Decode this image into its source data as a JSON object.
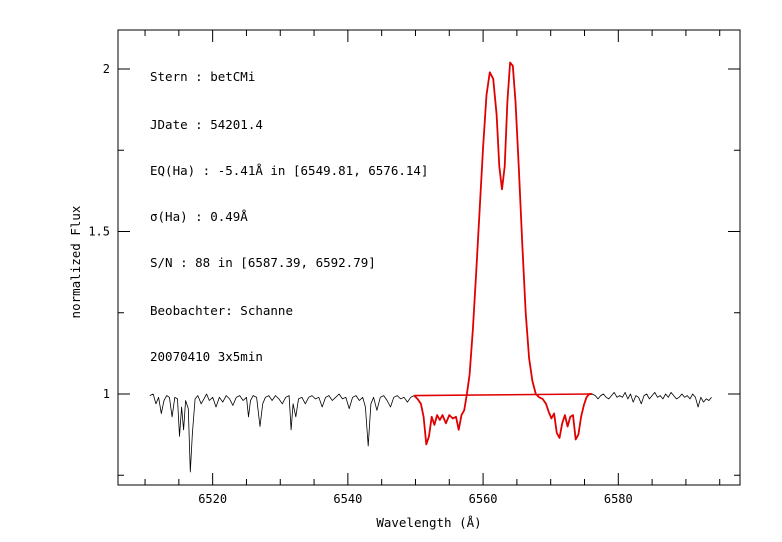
{
  "chart_data": {
    "type": "line",
    "xlabel": "Wavelength (Å)",
    "ylabel": "normalized Flux",
    "xlim": [
      6506,
      6598
    ],
    "ylim": [
      0.72,
      2.12
    ],
    "x_ticks": [
      6520,
      6540,
      6560,
      6580
    ],
    "y_ticks": [
      1,
      1.5,
      2
    ],
    "x_tick_labels": [
      "6520",
      "6540",
      "6560",
      "6580"
    ],
    "y_tick_labels": [
      "1",
      "1.5",
      "2"
    ],
    "grid": false,
    "annotations": [
      "Stern   : betCMi",
      "JDate   : 54201.4",
      "EQ(Ha) : -5.41Å in [6549.81, 6576.14]",
      "σ(Ha)   : 0.49Å",
      "S/N     : 88 in [6587.39, 6592.79]",
      "Beobachter: Schanne",
      "20070410 3x5min"
    ],
    "colors": {
      "spectrum": "#000000",
      "highlight": "#e00000"
    },
    "series": [
      {
        "values": [
          [
            6510.7,
            0.995
          ],
          [
            6511.2,
            1.0
          ],
          [
            6511.6,
            0.97
          ],
          [
            6512.0,
            0.99
          ],
          [
            6512.4,
            0.94
          ],
          [
            6512.8,
            0.98
          ],
          [
            6513.2,
            0.995
          ],
          [
            6513.6,
            0.99
          ],
          [
            6514.0,
            0.93
          ],
          [
            6514.4,
            0.99
          ],
          [
            6514.8,
            0.985
          ],
          [
            6515.1,
            0.87
          ],
          [
            6515.4,
            0.96
          ],
          [
            6515.7,
            0.89
          ],
          [
            6516.0,
            0.98
          ],
          [
            6516.4,
            0.955
          ],
          [
            6516.7,
            0.76
          ],
          [
            6517.0,
            0.88
          ],
          [
            6517.4,
            0.985
          ],
          [
            6517.8,
            0.995
          ],
          [
            6518.3,
            0.97
          ],
          [
            6518.7,
            0.985
          ],
          [
            6519.1,
            1.0
          ],
          [
            6519.5,
            0.98
          ],
          [
            6520.0,
            0.99
          ],
          [
            6520.5,
            0.96
          ],
          [
            6521.0,
            0.99
          ],
          [
            6521.5,
            0.975
          ],
          [
            6522.0,
            0.995
          ],
          [
            6522.5,
            0.985
          ],
          [
            6523.0,
            0.965
          ],
          [
            6523.5,
            0.99
          ],
          [
            6524.0,
            0.995
          ],
          [
            6524.5,
            0.98
          ],
          [
            6525.0,
            0.99
          ],
          [
            6525.3,
            0.93
          ],
          [
            6525.6,
            0.98
          ],
          [
            6526.0,
            0.995
          ],
          [
            6526.5,
            0.99
          ],
          [
            6527.0,
            0.9
          ],
          [
            6527.4,
            0.97
          ],
          [
            6527.8,
            0.99
          ],
          [
            6528.3,
            0.995
          ],
          [
            6528.8,
            0.98
          ],
          [
            6529.3,
            0.995
          ],
          [
            6529.8,
            0.985
          ],
          [
            6530.3,
            0.97
          ],
          [
            6530.8,
            0.99
          ],
          [
            6531.3,
            0.995
          ],
          [
            6531.6,
            0.89
          ],
          [
            6531.9,
            0.97
          ],
          [
            6532.3,
            0.93
          ],
          [
            6532.7,
            0.985
          ],
          [
            6533.2,
            0.99
          ],
          [
            6533.7,
            0.97
          ],
          [
            6534.2,
            0.99
          ],
          [
            6534.7,
            0.995
          ],
          [
            6535.2,
            0.985
          ],
          [
            6535.7,
            0.99
          ],
          [
            6536.2,
            0.96
          ],
          [
            6536.7,
            0.99
          ],
          [
            6537.2,
            0.995
          ],
          [
            6537.7,
            0.98
          ],
          [
            6538.2,
            0.99
          ],
          [
            6538.7,
            1.0
          ],
          [
            6539.2,
            0.985
          ],
          [
            6539.7,
            0.99
          ],
          [
            6540.2,
            0.955
          ],
          [
            6540.7,
            0.99
          ],
          [
            6541.2,
            0.995
          ],
          [
            6541.7,
            0.98
          ],
          [
            6542.2,
            0.99
          ],
          [
            6542.6,
            0.96
          ],
          [
            6543.0,
            0.84
          ],
          [
            6543.4,
            0.97
          ],
          [
            6543.8,
            0.99
          ],
          [
            6544.3,
            0.95
          ],
          [
            6544.8,
            0.99
          ],
          [
            6545.3,
            0.995
          ],
          [
            6545.8,
            0.98
          ],
          [
            6546.3,
            0.96
          ],
          [
            6546.8,
            0.99
          ],
          [
            6547.3,
            0.995
          ],
          [
            6547.8,
            0.985
          ],
          [
            6548.3,
            0.99
          ],
          [
            6548.8,
            0.975
          ],
          [
            6549.3,
            0.99
          ],
          [
            6549.8,
            0.995
          ]
        ]
      },
      {
        "values": [
          [
            6549.8,
            0.995
          ],
          [
            6550.3,
            0.985
          ],
          [
            6550.8,
            0.97
          ],
          [
            6551.2,
            0.93
          ],
          [
            6551.6,
            0.845
          ],
          [
            6552.0,
            0.87
          ],
          [
            6552.4,
            0.93
          ],
          [
            6552.8,
            0.905
          ],
          [
            6553.2,
            0.935
          ],
          [
            6553.6,
            0.92
          ],
          [
            6554.0,
            0.935
          ],
          [
            6554.5,
            0.91
          ],
          [
            6555.0,
            0.935
          ],
          [
            6555.5,
            0.925
          ],
          [
            6556.0,
            0.93
          ],
          [
            6556.4,
            0.89
          ],
          [
            6556.8,
            0.935
          ],
          [
            6557.2,
            0.95
          ],
          [
            6557.6,
            1.0
          ],
          [
            6558.0,
            1.06
          ],
          [
            6558.5,
            1.2
          ],
          [
            6559.0,
            1.38
          ],
          [
            6559.5,
            1.57
          ],
          [
            6560.0,
            1.76
          ],
          [
            6560.5,
            1.92
          ],
          [
            6561.0,
            1.99
          ],
          [
            6561.5,
            1.97
          ],
          [
            6562.0,
            1.86
          ],
          [
            6562.4,
            1.7
          ],
          [
            6562.8,
            1.63
          ],
          [
            6563.2,
            1.7
          ],
          [
            6563.6,
            1.9
          ],
          [
            6564.0,
            2.02
          ],
          [
            6564.4,
            2.01
          ],
          [
            6564.8,
            1.9
          ],
          [
            6565.3,
            1.69
          ],
          [
            6565.8,
            1.46
          ],
          [
            6566.3,
            1.25
          ],
          [
            6566.8,
            1.11
          ],
          [
            6567.3,
            1.04
          ],
          [
            6567.8,
            1.0
          ],
          [
            6568.3,
            0.99
          ],
          [
            6568.8,
            0.985
          ],
          [
            6569.3,
            0.97
          ],
          [
            6569.7,
            0.945
          ],
          [
            6570.1,
            0.925
          ],
          [
            6570.5,
            0.94
          ],
          [
            6570.9,
            0.88
          ],
          [
            6571.3,
            0.865
          ],
          [
            6571.7,
            0.91
          ],
          [
            6572.1,
            0.935
          ],
          [
            6572.5,
            0.9
          ],
          [
            6572.9,
            0.93
          ],
          [
            6573.3,
            0.935
          ],
          [
            6573.7,
            0.86
          ],
          [
            6574.1,
            0.875
          ],
          [
            6574.5,
            0.93
          ],
          [
            6574.9,
            0.965
          ],
          [
            6575.3,
            0.99
          ],
          [
            6575.7,
            1.0
          ],
          [
            6576.14,
            1.0
          ]
        ]
      },
      {
        "values": [
          [
            6576.14,
            1.0
          ],
          [
            6576.6,
            0.995
          ],
          [
            6577.0,
            0.985
          ],
          [
            6577.4,
            0.995
          ],
          [
            6577.8,
            1.0
          ],
          [
            6578.2,
            0.99
          ],
          [
            6578.6,
            0.985
          ],
          [
            6579.0,
            0.995
          ],
          [
            6579.4,
            1.005
          ],
          [
            6579.8,
            0.99
          ],
          [
            6580.2,
            0.995
          ],
          [
            6580.6,
            0.99
          ],
          [
            6581.0,
            1.005
          ],
          [
            6581.4,
            0.985
          ],
          [
            6581.8,
            1.0
          ],
          [
            6582.2,
            0.975
          ],
          [
            6582.6,
            0.995
          ],
          [
            6583.0,
            0.99
          ],
          [
            6583.4,
            0.97
          ],
          [
            6583.8,
            0.995
          ],
          [
            6584.2,
            1.0
          ],
          [
            6584.6,
            0.985
          ],
          [
            6585.0,
            0.995
          ],
          [
            6585.4,
            1.005
          ],
          [
            6585.8,
            0.99
          ],
          [
            6586.2,
            0.995
          ],
          [
            6586.6,
            0.985
          ],
          [
            6587.0,
            1.0
          ],
          [
            6587.4,
            0.99
          ],
          [
            6587.8,
            1.005
          ],
          [
            6588.2,
            0.995
          ],
          [
            6588.6,
            0.985
          ],
          [
            6589.0,
            0.99
          ],
          [
            6589.4,
            1.0
          ],
          [
            6589.8,
            0.99
          ],
          [
            6590.2,
            0.995
          ],
          [
            6590.6,
            0.985
          ],
          [
            6591.0,
            1.0
          ],
          [
            6591.4,
            0.99
          ],
          [
            6591.8,
            0.96
          ],
          [
            6592.2,
            0.99
          ],
          [
            6592.6,
            0.975
          ],
          [
            6593.0,
            0.985
          ],
          [
            6593.4,
            0.98
          ],
          [
            6593.8,
            0.99
          ]
        ]
      },
      {
        "values": [
          [
            6549.81,
            0.995
          ],
          [
            6576.14,
            1.0
          ]
        ]
      }
    ]
  }
}
